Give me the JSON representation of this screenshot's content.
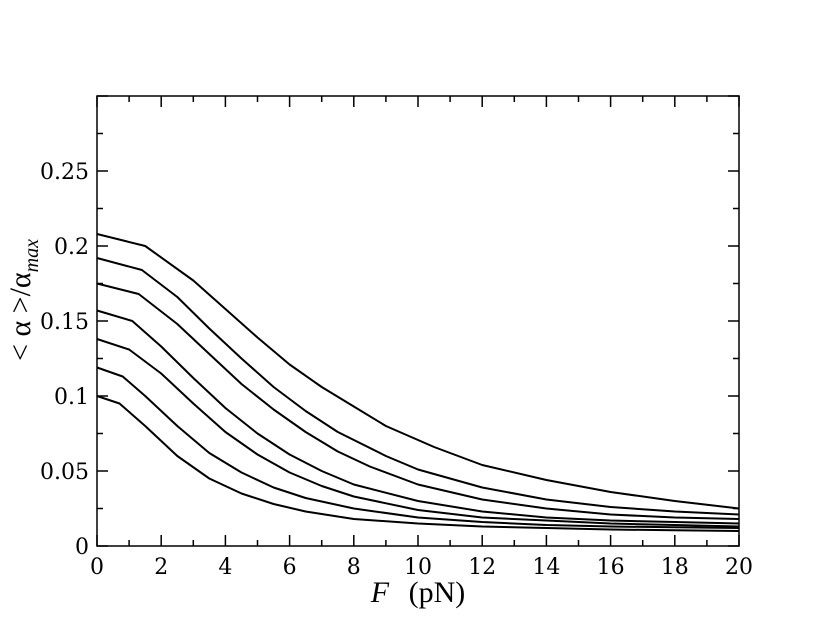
{
  "chart_data": {
    "type": "line",
    "title": "",
    "xlabel": {
      "main": "F",
      "unit": "(pN)"
    },
    "ylabel": {
      "prefix": "< α >/α",
      "sub": "max"
    },
    "xlim": [
      0,
      20
    ],
    "ylim": [
      0,
      0.3
    ],
    "xticks": [
      0,
      2,
      4,
      6,
      8,
      10,
      12,
      14,
      16,
      18,
      20
    ],
    "xtick_labels": [
      "0",
      "2",
      "4",
      "6",
      "8",
      "10",
      "12",
      "14",
      "16",
      "18",
      "20"
    ],
    "yticks": [
      0,
      0.05,
      0.1,
      0.15,
      0.2,
      0.25
    ],
    "ytick_labels": [
      "0",
      "0.05",
      "0.1",
      "0.15",
      "0.2",
      "0.25"
    ],
    "grid": false,
    "legend": false,
    "line_color": "#000000",
    "series": [
      {
        "x": [
          0,
          0.7,
          1.5,
          2.5,
          3.5,
          4.5,
          5.5,
          6.5,
          8,
          10,
          12,
          14,
          16,
          18,
          20
        ],
        "values": [
          0.1,
          0.095,
          0.08,
          0.06,
          0.045,
          0.035,
          0.028,
          0.023,
          0.018,
          0.015,
          0.013,
          0.012,
          0.011,
          0.0105,
          0.01
        ]
      },
      {
        "x": [
          0,
          0.8,
          1.5,
          2.5,
          3.5,
          4.5,
          5.5,
          6.5,
          8,
          10,
          12,
          14,
          16,
          18,
          20
        ],
        "values": [
          0.119,
          0.113,
          0.1,
          0.08,
          0.062,
          0.049,
          0.039,
          0.032,
          0.025,
          0.019,
          0.016,
          0.014,
          0.013,
          0.0125,
          0.012
        ]
      },
      {
        "x": [
          0,
          1.0,
          2.0,
          3.0,
          4.0,
          5.0,
          6.0,
          7.0,
          8,
          10,
          12,
          14,
          16,
          18,
          20
        ],
        "values": [
          0.138,
          0.131,
          0.115,
          0.095,
          0.076,
          0.061,
          0.049,
          0.04,
          0.033,
          0.024,
          0.019,
          0.017,
          0.015,
          0.014,
          0.013
        ]
      },
      {
        "x": [
          0,
          1.1,
          2.0,
          3.0,
          4.0,
          5.0,
          6.0,
          7.0,
          8,
          10,
          12,
          14,
          16,
          18,
          20
        ],
        "values": [
          0.157,
          0.15,
          0.133,
          0.112,
          0.092,
          0.075,
          0.061,
          0.05,
          0.041,
          0.03,
          0.023,
          0.019,
          0.017,
          0.016,
          0.015
        ]
      },
      {
        "x": [
          0,
          1.3,
          2.5,
          3.5,
          4.5,
          5.5,
          6.5,
          7.5,
          8.5,
          10,
          12,
          14,
          16,
          18,
          20
        ],
        "values": [
          0.175,
          0.168,
          0.148,
          0.128,
          0.108,
          0.091,
          0.076,
          0.063,
          0.053,
          0.041,
          0.031,
          0.025,
          0.021,
          0.019,
          0.018
        ]
      },
      {
        "x": [
          0,
          1.4,
          2.5,
          3.5,
          4.5,
          5.5,
          6.5,
          7.5,
          9,
          10,
          12,
          14,
          16,
          18,
          20
        ],
        "values": [
          0.192,
          0.184,
          0.166,
          0.145,
          0.125,
          0.106,
          0.09,
          0.076,
          0.06,
          0.051,
          0.039,
          0.031,
          0.026,
          0.023,
          0.021
        ]
      },
      {
        "x": [
          0,
          1.5,
          3.0,
          4.0,
          5.0,
          6.0,
          7.0,
          8.0,
          9,
          10.5,
          12,
          14,
          16,
          18,
          20
        ],
        "values": [
          0.208,
          0.2,
          0.177,
          0.158,
          0.139,
          0.121,
          0.106,
          0.093,
          0.08,
          0.066,
          0.054,
          0.044,
          0.036,
          0.03,
          0.025
        ]
      }
    ]
  }
}
